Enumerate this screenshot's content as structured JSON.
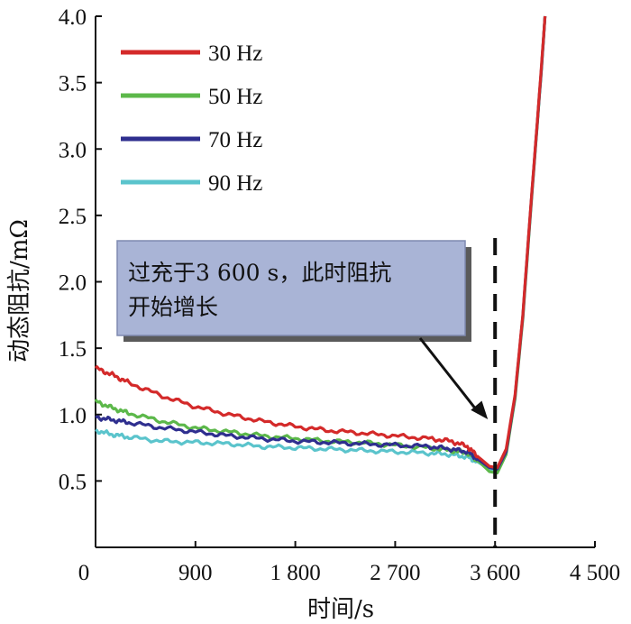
{
  "chart_data": {
    "type": "line",
    "xlabel": "时间/s",
    "ylabel": "动态阻抗/mΩ",
    "xlim": [
      0,
      4500
    ],
    "ylim": [
      0,
      4.0
    ],
    "x_origin_label": "0",
    "x_ticks": [
      {
        "value": 900,
        "label": "900"
      },
      {
        "value": 1800,
        "label": "1 800"
      },
      {
        "value": 2700,
        "label": "2 700"
      },
      {
        "value": 3600,
        "label": "3 600"
      },
      {
        "value": 4500,
        "label": "4 500"
      }
    ],
    "y_ticks": [
      {
        "value": 0.5,
        "label": "0.5"
      },
      {
        "value": 1.0,
        "label": "1.0"
      },
      {
        "value": 1.5,
        "label": "1.5"
      },
      {
        "value": 2.0,
        "label": "2.0"
      },
      {
        "value": 2.5,
        "label": "2.5"
      },
      {
        "value": 3.0,
        "label": "3.0"
      },
      {
        "value": 3.5,
        "label": "3.5"
      },
      {
        "value": 4.0,
        "label": "4.0"
      }
    ],
    "grid": false,
    "legend": "top-left",
    "series": [
      {
        "name": "30 Hz",
        "color": "#d42a2a",
        "x": [
          0,
          150,
          300,
          600,
          900,
          1200,
          1500,
          1800,
          2100,
          2400,
          2700,
          3000,
          3200,
          3350,
          3450,
          3550,
          3620,
          3700,
          3780,
          3850,
          3920,
          3980,
          4020,
          4050
        ],
        "y": [
          1.35,
          1.3,
          1.24,
          1.14,
          1.06,
          1.0,
          0.95,
          0.91,
          0.88,
          0.86,
          0.84,
          0.82,
          0.8,
          0.76,
          0.68,
          0.61,
          0.6,
          0.74,
          1.15,
          1.75,
          2.55,
          3.2,
          3.65,
          4.0
        ]
      },
      {
        "name": "50 Hz",
        "color": "#5cb84a",
        "x": [
          0,
          150,
          300,
          600,
          900,
          1200,
          1500,
          1800,
          2100,
          2400,
          2700,
          3000,
          3200,
          3350,
          3450,
          3550,
          3620,
          3700,
          3780,
          3850,
          3920,
          3980,
          4020,
          4050
        ],
        "y": [
          1.1,
          1.05,
          1.01,
          0.95,
          0.9,
          0.87,
          0.84,
          0.82,
          0.8,
          0.79,
          0.77,
          0.75,
          0.73,
          0.71,
          0.65,
          0.57,
          0.56,
          0.7,
          1.12,
          1.72,
          2.52,
          3.18,
          3.62,
          4.0
        ]
      },
      {
        "name": "70 Hz",
        "color": "#2f2f8f",
        "x": [
          0,
          150,
          300,
          600,
          900,
          1200,
          1500,
          1800,
          2100,
          2400,
          2700,
          3000,
          3200,
          3350,
          3450,
          3550,
          3620,
          3700,
          3780,
          3850,
          3920,
          3980,
          4020,
          4050
        ],
        "y": [
          0.98,
          0.96,
          0.94,
          0.9,
          0.87,
          0.84,
          0.82,
          0.8,
          0.79,
          0.78,
          0.77,
          0.76,
          0.74,
          0.72,
          0.66,
          0.6,
          0.59,
          0.72,
          1.14,
          1.74,
          2.54,
          3.19,
          3.63,
          4.0
        ]
      },
      {
        "name": "90 Hz",
        "color": "#5bc4cc",
        "x": [
          0,
          150,
          300,
          600,
          900,
          1200,
          1500,
          1800,
          2100,
          2400,
          2700,
          3000,
          3200,
          3350,
          3450,
          3550,
          3620,
          3700,
          3780,
          3850,
          3920,
          3980,
          4020,
          4050
        ],
        "y": [
          0.88,
          0.85,
          0.83,
          0.8,
          0.79,
          0.78,
          0.76,
          0.75,
          0.74,
          0.73,
          0.72,
          0.71,
          0.7,
          0.68,
          0.64,
          0.59,
          0.58,
          0.72,
          1.13,
          1.73,
          2.53,
          3.19,
          3.63,
          4.0
        ]
      }
    ],
    "marker_line": {
      "x": 3600,
      "style": "dashed",
      "color": "#111111"
    },
    "annotation": {
      "lines": [
        "过充于3 600 s，此时阻抗",
        "开始增长"
      ],
      "box_fill": "#a9b4d6",
      "shadow": "#5a5a5a",
      "arrow_target": {
        "x": 3600,
        "y": 1.1
      }
    }
  }
}
